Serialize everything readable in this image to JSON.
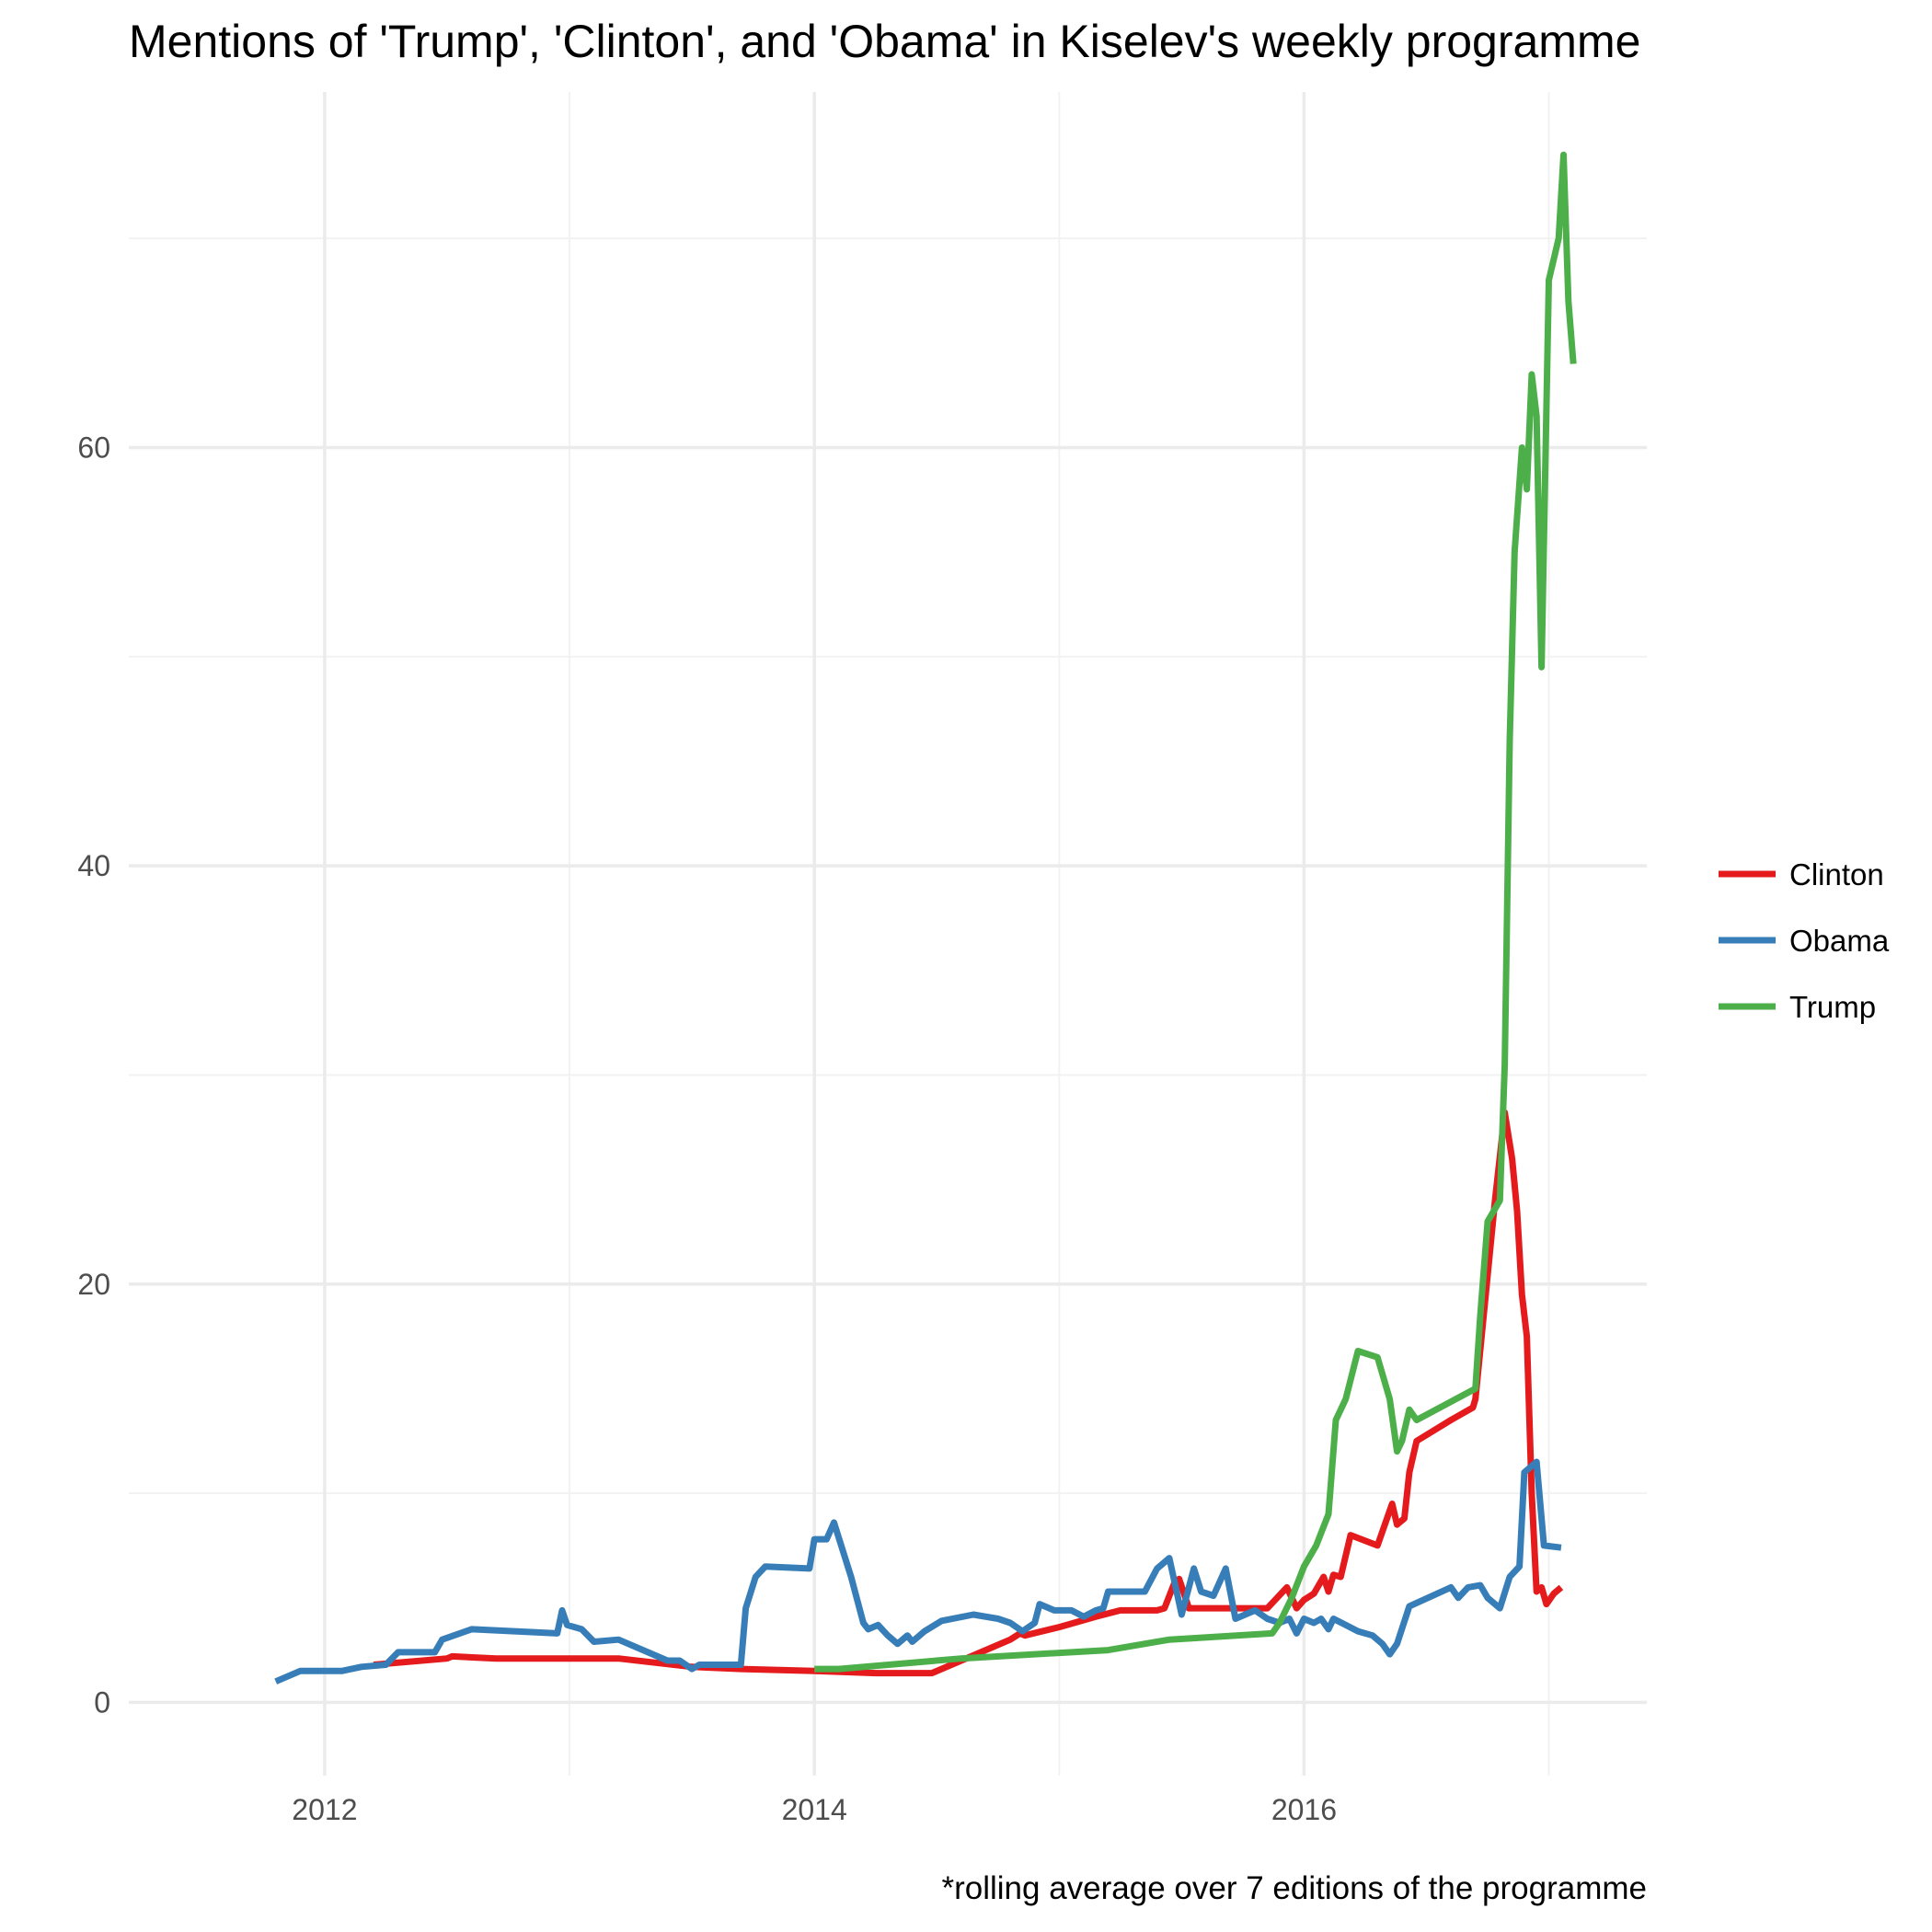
{
  "chart_data": {
    "type": "line",
    "title": "Mentions of 'Trump', 'Clinton', and 'Obama' in Kiselev's weekly programme",
    "caption": "*rolling average over 7 editions of the programme",
    "xlabel": "",
    "ylabel": "",
    "xlim": [
      2011.2,
      2017.4
    ],
    "ylim": [
      -3.5,
      77
    ],
    "x_ticks": [
      2012,
      2014,
      2016
    ],
    "x_tick_labels": [
      "2012",
      "2014",
      "2016"
    ],
    "y_ticks": [
      0,
      20,
      40,
      60
    ],
    "y_tick_labels": [
      "0",
      "20",
      "40",
      "60"
    ],
    "grid": true,
    "legend_position": "right",
    "series": [
      {
        "name": "Clinton",
        "color": "#e41a1c",
        "points": [
          [
            2012.2,
            1.8
          ],
          [
            2012.5,
            2.1
          ],
          [
            2012.52,
            2.2
          ],
          [
            2012.7,
            2.1
          ],
          [
            2013.2,
            2.1
          ],
          [
            2013.5,
            1.7
          ],
          [
            2013.7,
            1.6
          ],
          [
            2014.0,
            1.5
          ],
          [
            2014.25,
            1.4
          ],
          [
            2014.48,
            1.4
          ],
          [
            2014.6,
            2.0
          ],
          [
            2014.8,
            3.0
          ],
          [
            2014.84,
            3.3
          ],
          [
            2014.86,
            3.2
          ],
          [
            2015.0,
            3.6
          ],
          [
            2015.15,
            4.1
          ],
          [
            2015.25,
            4.4
          ],
          [
            2015.4,
            4.4
          ],
          [
            2015.43,
            4.5
          ],
          [
            2015.47,
            5.7
          ],
          [
            2015.49,
            5.9
          ],
          [
            2015.53,
            4.5
          ],
          [
            2015.85,
            4.5
          ],
          [
            2015.93,
            5.5
          ],
          [
            2015.97,
            4.5
          ],
          [
            2016.0,
            4.9
          ],
          [
            2016.04,
            5.2
          ],
          [
            2016.08,
            6.0
          ],
          [
            2016.1,
            5.3
          ],
          [
            2016.12,
            6.1
          ],
          [
            2016.15,
            6.0
          ],
          [
            2016.19,
            8.0
          ],
          [
            2016.3,
            7.5
          ],
          [
            2016.36,
            9.5
          ],
          [
            2016.38,
            8.5
          ],
          [
            2016.41,
            8.8
          ],
          [
            2016.43,
            11.0
          ],
          [
            2016.46,
            12.5
          ],
          [
            2016.6,
            13.5
          ],
          [
            2016.69,
            14.1
          ],
          [
            2016.7,
            14.5
          ],
          [
            2016.78,
            24.0
          ],
          [
            2016.82,
            28.2
          ],
          [
            2016.85,
            26.0
          ],
          [
            2016.87,
            23.5
          ],
          [
            2016.89,
            19.5
          ],
          [
            2016.91,
            17.5
          ],
          [
            2016.93,
            10.0
          ],
          [
            2016.95,
            5.3
          ],
          [
            2016.97,
            5.5
          ],
          [
            2016.99,
            4.7
          ],
          [
            2017.02,
            5.2
          ],
          [
            2017.05,
            5.5
          ]
        ]
      },
      {
        "name": "Obama",
        "color": "#377eb8",
        "points": [
          [
            2011.8,
            1.0
          ],
          [
            2011.9,
            1.5
          ],
          [
            2012.07,
            1.5
          ],
          [
            2012.15,
            1.7
          ],
          [
            2012.25,
            1.8
          ],
          [
            2012.3,
            2.4
          ],
          [
            2012.45,
            2.4
          ],
          [
            2012.48,
            3.0
          ],
          [
            2012.6,
            3.5
          ],
          [
            2012.95,
            3.3
          ],
          [
            2012.97,
            4.4
          ],
          [
            2012.99,
            3.7
          ],
          [
            2013.05,
            3.5
          ],
          [
            2013.1,
            2.9
          ],
          [
            2013.2,
            3.0
          ],
          [
            2013.4,
            2.0
          ],
          [
            2013.45,
            2.0
          ],
          [
            2013.5,
            1.6
          ],
          [
            2013.53,
            1.8
          ],
          [
            2013.7,
            1.8
          ],
          [
            2013.72,
            4.5
          ],
          [
            2013.76,
            6.0
          ],
          [
            2013.8,
            6.5
          ],
          [
            2013.98,
            6.4
          ],
          [
            2014.0,
            7.8
          ],
          [
            2014.05,
            7.8
          ],
          [
            2014.08,
            8.6
          ],
          [
            2014.15,
            6.0
          ],
          [
            2014.2,
            3.8
          ],
          [
            2014.22,
            3.5
          ],
          [
            2014.26,
            3.7
          ],
          [
            2014.3,
            3.2
          ],
          [
            2014.34,
            2.8
          ],
          [
            2014.38,
            3.2
          ],
          [
            2014.4,
            2.9
          ],
          [
            2014.45,
            3.4
          ],
          [
            2014.52,
            3.9
          ],
          [
            2014.65,
            4.2
          ],
          [
            2014.75,
            4.0
          ],
          [
            2014.8,
            3.8
          ],
          [
            2014.85,
            3.4
          ],
          [
            2014.9,
            3.8
          ],
          [
            2014.92,
            4.7
          ],
          [
            2014.98,
            4.4
          ],
          [
            2015.05,
            4.4
          ],
          [
            2015.1,
            4.1
          ],
          [
            2015.15,
            4.4
          ],
          [
            2015.18,
            4.5
          ],
          [
            2015.2,
            5.3
          ],
          [
            2015.35,
            5.3
          ],
          [
            2015.4,
            6.4
          ],
          [
            2015.45,
            6.9
          ],
          [
            2015.5,
            4.2
          ],
          [
            2015.55,
            6.4
          ],
          [
            2015.58,
            5.3
          ],
          [
            2015.63,
            5.1
          ],
          [
            2015.68,
            6.4
          ],
          [
            2015.72,
            4.0
          ],
          [
            2015.8,
            4.4
          ],
          [
            2015.85,
            4.0
          ],
          [
            2015.9,
            3.8
          ],
          [
            2015.94,
            4.0
          ],
          [
            2015.97,
            3.3
          ],
          [
            2016.0,
            4.0
          ],
          [
            2016.04,
            3.8
          ],
          [
            2016.07,
            4.0
          ],
          [
            2016.1,
            3.5
          ],
          [
            2016.12,
            4.0
          ],
          [
            2016.17,
            3.7
          ],
          [
            2016.22,
            3.4
          ],
          [
            2016.28,
            3.2
          ],
          [
            2016.32,
            2.8
          ],
          [
            2016.35,
            2.3
          ],
          [
            2016.38,
            2.8
          ],
          [
            2016.43,
            4.6
          ],
          [
            2016.6,
            5.5
          ],
          [
            2016.63,
            5.0
          ],
          [
            2016.67,
            5.5
          ],
          [
            2016.72,
            5.6
          ],
          [
            2016.75,
            5.0
          ],
          [
            2016.8,
            4.5
          ],
          [
            2016.84,
            6.0
          ],
          [
            2016.88,
            6.5
          ],
          [
            2016.9,
            11.0
          ],
          [
            2016.95,
            11.5
          ],
          [
            2016.98,
            7.5
          ],
          [
            2017.05,
            7.4
          ]
        ]
      },
      {
        "name": "Trump",
        "color": "#4daf4a",
        "points": [
          [
            2014.0,
            1.6
          ],
          [
            2014.1,
            1.6
          ],
          [
            2014.6,
            2.1
          ],
          [
            2015.2,
            2.5
          ],
          [
            2015.45,
            3.0
          ],
          [
            2015.87,
            3.3
          ],
          [
            2015.9,
            3.8
          ],
          [
            2015.95,
            5.0
          ],
          [
            2016.0,
            6.5
          ],
          [
            2016.05,
            7.5
          ],
          [
            2016.1,
            9.0
          ],
          [
            2016.13,
            13.5
          ],
          [
            2016.17,
            14.5
          ],
          [
            2016.22,
            16.8
          ],
          [
            2016.3,
            16.5
          ],
          [
            2016.35,
            14.5
          ],
          [
            2016.38,
            12.0
          ],
          [
            2016.4,
            12.5
          ],
          [
            2016.43,
            14.0
          ],
          [
            2016.46,
            13.5
          ],
          [
            2016.7,
            15.0
          ],
          [
            2016.72,
            18.5
          ],
          [
            2016.75,
            23.0
          ],
          [
            2016.8,
            24.0
          ],
          [
            2016.82,
            30.5
          ],
          [
            2016.84,
            46.0
          ],
          [
            2016.86,
            55.0
          ],
          [
            2016.89,
            60.0
          ],
          [
            2016.91,
            58.0
          ],
          [
            2016.93,
            63.5
          ],
          [
            2016.95,
            61.5
          ],
          [
            2016.97,
            49.5
          ],
          [
            2017.0,
            68.0
          ],
          [
            2017.04,
            70.0
          ],
          [
            2017.06,
            74.0
          ],
          [
            2017.08,
            67.0
          ],
          [
            2017.1,
            64.0
          ]
        ]
      }
    ]
  }
}
